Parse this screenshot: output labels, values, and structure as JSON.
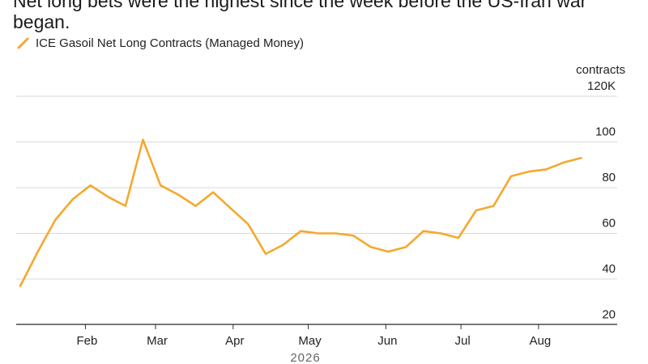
{
  "header": {
    "subtitle": "Net long bets were the highest since the week before the US-Iran war began."
  },
  "legend": {
    "label": "ICE Gasoil Net Long Contracts (Managed Money)",
    "icon": "diagonal-line-icon"
  },
  "colors": {
    "series": "#f5a82f",
    "grid": "#d9d9d9",
    "axis": "#333333",
    "text": "#222222"
  },
  "chart_data": {
    "type": "line",
    "title": "",
    "xlabel": "",
    "ylabel": "contracts",
    "y_unit_label": "contracts",
    "ylim": [
      15,
      120
    ],
    "y_ticks": [
      {
        "value": 120,
        "label": "120K"
      },
      {
        "value": 100,
        "label": "100"
      },
      {
        "value": 80,
        "label": "80"
      },
      {
        "value": 60,
        "label": "60"
      },
      {
        "value": 40,
        "label": "40"
      },
      {
        "value": 20,
        "label": "20"
      }
    ],
    "x_ticks": [
      {
        "date": "2026-02-01",
        "label": "Feb"
      },
      {
        "date": "2026-03-01",
        "label": "Mar"
      },
      {
        "date": "2026-04-01",
        "label": "Apr"
      },
      {
        "date": "2026-05-01",
        "label": "May"
      },
      {
        "date": "2026-06-01",
        "label": "Jun"
      },
      {
        "date": "2026-07-01",
        "label": "Jul"
      },
      {
        "date": "2026-08-01",
        "label": "Aug"
      }
    ],
    "x_year_label": "2026",
    "xlim": [
      "2026-01-05",
      "2026-09-04"
    ],
    "grid": true,
    "legend_position": "top-left",
    "series": [
      {
        "name": "ICE Gasoil Net Long Contracts (Managed Money)",
        "points": [
          {
            "x": "2026-01-06",
            "y": 37
          },
          {
            "x": "2026-01-13",
            "y": 52
          },
          {
            "x": "2026-01-20",
            "y": 66
          },
          {
            "x": "2026-01-27",
            "y": 75
          },
          {
            "x": "2026-02-03",
            "y": 81
          },
          {
            "x": "2026-02-10",
            "y": 76
          },
          {
            "x": "2026-02-17",
            "y": 72
          },
          {
            "x": "2026-02-24",
            "y": 101
          },
          {
            "x": "2026-03-03",
            "y": 81
          },
          {
            "x": "2026-03-10",
            "y": 77
          },
          {
            "x": "2026-03-17",
            "y": 72
          },
          {
            "x": "2026-03-24",
            "y": 78
          },
          {
            "x": "2026-03-31",
            "y": 71
          },
          {
            "x": "2026-04-07",
            "y": 64
          },
          {
            "x": "2026-04-14",
            "y": 51
          },
          {
            "x": "2026-04-21",
            "y": 55
          },
          {
            "x": "2026-04-28",
            "y": 61
          },
          {
            "x": "2026-05-05",
            "y": 60
          },
          {
            "x": "2026-05-12",
            "y": 60
          },
          {
            "x": "2026-05-19",
            "y": 59
          },
          {
            "x": "2026-05-26",
            "y": 54
          },
          {
            "x": "2026-06-02",
            "y": 52
          },
          {
            "x": "2026-06-09",
            "y": 54
          },
          {
            "x": "2026-06-16",
            "y": 61
          },
          {
            "x": "2026-06-23",
            "y": 60
          },
          {
            "x": "2026-06-30",
            "y": 58
          },
          {
            "x": "2026-07-07",
            "y": 70
          },
          {
            "x": "2026-07-14",
            "y": 72
          },
          {
            "x": "2026-07-21",
            "y": 85
          },
          {
            "x": "2026-07-28",
            "y": 87
          },
          {
            "x": "2026-08-04",
            "y": 88
          },
          {
            "x": "2026-08-11",
            "y": 91
          },
          {
            "x": "2026-08-18",
            "y": 93
          }
        ]
      }
    ]
  }
}
